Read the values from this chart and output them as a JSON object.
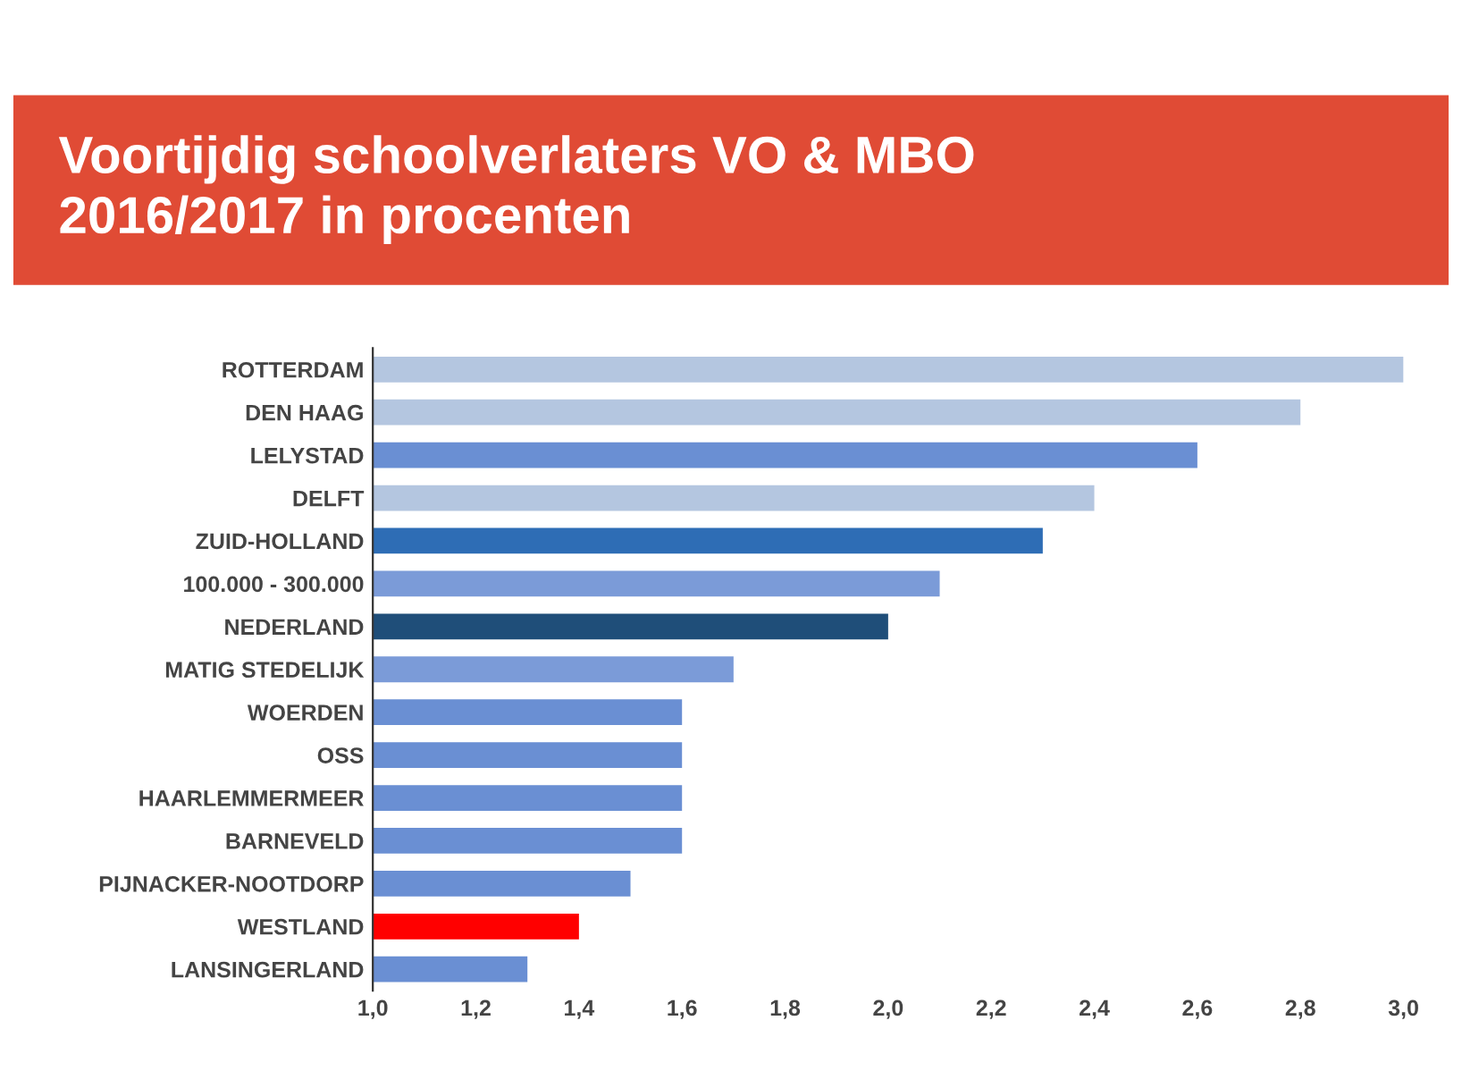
{
  "chart_data": {
    "type": "bar",
    "orientation": "horizontal",
    "title": "Voortijdig schoolverlaters VO & MBO\n2016/2017 in procenten",
    "categories": [
      "ROTTERDAM",
      "DEN HAAG",
      "LELYSTAD",
      "DELFT",
      "ZUID-HOLLAND",
      "100.000 - 300.000",
      "NEDERLAND",
      "MATIG STEDELIJK",
      "WOERDEN",
      "OSS",
      "HAARLEMMERMEER",
      "BARNEVELD",
      "PIJNACKER-NOOTDORP",
      "WESTLAND",
      "LANSINGERLAND"
    ],
    "values": [
      3.0,
      2.8,
      2.6,
      2.4,
      2.3,
      2.1,
      2.0,
      1.7,
      1.6,
      1.6,
      1.6,
      1.6,
      1.5,
      1.4,
      1.3
    ],
    "colors": [
      "#b4c6e0",
      "#b4c6e0",
      "#6a8fd3",
      "#b4c6e0",
      "#2e6db5",
      "#7b9bd8",
      "#1f4e79",
      "#7b9bd8",
      "#6a8fd3",
      "#6a8fd3",
      "#6a8fd3",
      "#6a8fd3",
      "#6a8fd3",
      "#ff0000",
      "#6a8fd3"
    ],
    "xlim": [
      1.0,
      3.0
    ],
    "xticks": [
      {
        "value": 1.0,
        "label": "1,0"
      },
      {
        "value": 1.2,
        "label": "1,2"
      },
      {
        "value": 1.4,
        "label": "1,4"
      },
      {
        "value": 1.6,
        "label": "1,6"
      },
      {
        "value": 1.8,
        "label": "1,8"
      },
      {
        "value": 2.0,
        "label": "2,0"
      },
      {
        "value": 2.2,
        "label": "2,2"
      },
      {
        "value": 2.4,
        "label": "2,4"
      },
      {
        "value": 2.6,
        "label": "2,6"
      },
      {
        "value": 2.8,
        "label": "2,8"
      },
      {
        "value": 3.0,
        "label": "3,0"
      }
    ],
    "grid": false,
    "legend": false
  }
}
